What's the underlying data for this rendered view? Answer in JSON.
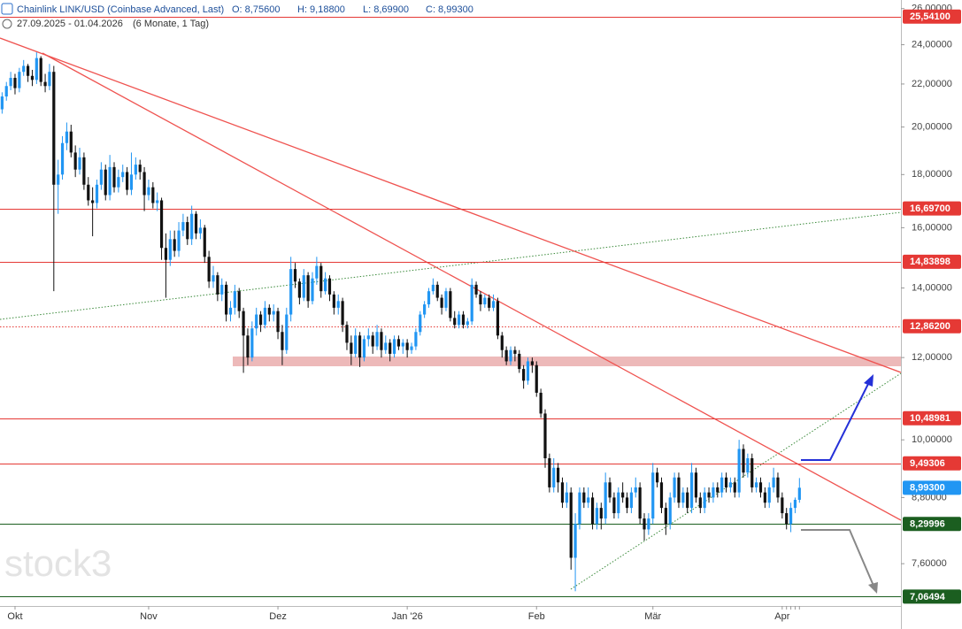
{
  "header": {
    "title": "Chainlink LINK/USD (Coinbase Advanced, Last)",
    "open": "O: 8,75600",
    "high": "H: 9,18800",
    "low": "L: 8,69900",
    "close": "C: 8,99300",
    "range": "27.09.2025 - 01.04.2026",
    "period": "(6 Monate, 1 Tag)"
  },
  "watermark": "stock3",
  "chart_data": {
    "type": "candlestick",
    "log_scale": true,
    "up_color": "#2196f3",
    "down_color": "#111111",
    "ylim": [
      6.92,
      26.5
    ],
    "yticks": [
      {
        "value": 26,
        "label": "26,00000"
      },
      {
        "value": 24,
        "label": "24,00000"
      },
      {
        "value": 22,
        "label": "22,00000"
      },
      {
        "value": 20,
        "label": "20,00000"
      },
      {
        "value": 18,
        "label": "18,00000"
      },
      {
        "value": 16,
        "label": "16,00000"
      },
      {
        "value": 14,
        "label": "14,00000"
      },
      {
        "value": 12,
        "label": "12,00000"
      },
      {
        "value": 10,
        "label": "10,00000"
      },
      {
        "value": 8.8,
        "label": "8,80000"
      },
      {
        "value": 7.6,
        "label": "7,60000"
      }
    ],
    "levels": [
      {
        "value": 25.541,
        "label": "25,54100",
        "color": "#e53935",
        "style": "solid"
      },
      {
        "value": 16.697,
        "label": "16,69700",
        "color": "#e53935",
        "style": "solid"
      },
      {
        "value": 14.83898,
        "label": "14,83898",
        "color": "#e53935",
        "style": "solid"
      },
      {
        "value": 12.862,
        "label": "12,86200",
        "color": "#e53935",
        "style": "dotted"
      },
      {
        "value": 10.48981,
        "label": "10,48981",
        "color": "#e53935",
        "style": "solid"
      },
      {
        "value": 9.49306,
        "label": "9,49306",
        "color": "#e53935",
        "style": "solid"
      },
      {
        "value": 8.993,
        "label": "8,99300",
        "color": "#2196f3",
        "style": "none"
      },
      {
        "value": 8.29996,
        "label": "8,29996",
        "color": "#1b5e20",
        "style": "solid"
      },
      {
        "value": 7.06494,
        "label": "7,06494",
        "color": "#1b5e20",
        "style": "solid"
      }
    ],
    "categories": [
      null,
      null,
      null,
      null,
      "Okt",
      null,
      null,
      null,
      null,
      null,
      null,
      null,
      null,
      null,
      null,
      null,
      null,
      null,
      null,
      null,
      null,
      null,
      null,
      null,
      null,
      null,
      null,
      null,
      null,
      null,
      null,
      null,
      null,
      null,
      null,
      "Nov",
      null,
      null,
      null,
      null,
      null,
      null,
      null,
      null,
      null,
      null,
      null,
      null,
      null,
      null,
      null,
      null,
      null,
      null,
      null,
      null,
      null,
      null,
      null,
      null,
      null,
      null,
      null,
      null,
      null,
      "Dez",
      null,
      null,
      null,
      null,
      null,
      null,
      null,
      null,
      null,
      null,
      null,
      null,
      null,
      null,
      null,
      null,
      null,
      null,
      null,
      null,
      null,
      null,
      null,
      null,
      null,
      null,
      null,
      null,
      null,
      "Jan '26",
      null,
      null,
      null,
      null,
      null,
      null,
      null,
      null,
      null,
      null,
      null,
      null,
      null,
      null,
      null,
      null,
      null,
      null,
      null,
      null,
      null,
      null,
      null,
      null,
      null,
      null,
      null,
      null,
      null,
      "Feb",
      null,
      null,
      null,
      null,
      null,
      null,
      null,
      null,
      null,
      null,
      null,
      null,
      null,
      null,
      null,
      null,
      null,
      null,
      null,
      null,
      null,
      null,
      null,
      null,
      null,
      null,
      "Mär",
      null,
      null,
      null,
      null,
      null,
      null,
      null,
      null,
      null,
      null,
      null,
      null,
      null,
      null,
      null,
      null,
      null,
      null,
      null,
      null,
      null,
      null,
      null,
      null,
      null,
      null,
      null,
      null,
      null,
      "Apr"
    ],
    "ohlc": [
      [
        20.6,
        21.0,
        20.4,
        20.8
      ],
      [
        20.8,
        21.6,
        20.6,
        21.4
      ],
      [
        21.4,
        22.1,
        21.2,
        21.9
      ],
      [
        21.9,
        22.6,
        21.7,
        22.3
      ],
      [
        22.3,
        22.5,
        21.5,
        21.8
      ],
      [
        21.8,
        22.8,
        21.6,
        22.6
      ],
      [
        22.6,
        23.2,
        22.4,
        22.9
      ],
      [
        22.9,
        23.0,
        22.1,
        22.4
      ],
      [
        22.4,
        22.7,
        21.9,
        22.2
      ],
      [
        22.2,
        23.6,
        22.0,
        23.3
      ],
      [
        23.3,
        23.4,
        21.9,
        22.1
      ],
      [
        22.1,
        22.5,
        21.6,
        21.9
      ],
      [
        21.9,
        23.0,
        21.7,
        22.6
      ],
      [
        22.6,
        22.9,
        13.9,
        17.6
      ],
      [
        17.6,
        18.6,
        16.5,
        18.0
      ],
      [
        18.0,
        19.6,
        17.8,
        19.3
      ],
      [
        19.3,
        20.2,
        19.0,
        19.8
      ],
      [
        19.8,
        20.1,
        18.7,
        18.9
      ],
      [
        18.9,
        19.2,
        17.9,
        18.2
      ],
      [
        18.2,
        19.1,
        18.0,
        18.7
      ],
      [
        18.7,
        18.9,
        17.4,
        17.6
      ],
      [
        17.6,
        17.9,
        16.8,
        17.0
      ],
      [
        17.0,
        17.5,
        15.7,
        16.9
      ],
      [
        16.9,
        17.8,
        16.7,
        17.6
      ],
      [
        17.6,
        18.5,
        17.4,
        18.2
      ],
      [
        18.2,
        18.4,
        17.0,
        17.2
      ],
      [
        17.2,
        18.8,
        17.0,
        18.3
      ],
      [
        18.3,
        18.5,
        17.3,
        17.5
      ],
      [
        17.5,
        18.2,
        17.3,
        17.9
      ],
      [
        17.9,
        18.4,
        17.7,
        18.1
      ],
      [
        18.1,
        18.3,
        17.2,
        17.4
      ],
      [
        17.4,
        18.9,
        17.2,
        18.0
      ],
      [
        18.0,
        18.7,
        17.8,
        18.4
      ],
      [
        18.4,
        18.6,
        17.8,
        18.1
      ],
      [
        18.1,
        18.3,
        16.6,
        17.2
      ],
      [
        17.2,
        17.8,
        17.0,
        17.5
      ],
      [
        17.5,
        17.7,
        16.7,
        16.9
      ],
      [
        16.9,
        17.3,
        16.6,
        17.0
      ],
      [
        17.0,
        17.1,
        14.9,
        15.3
      ],
      [
        15.3,
        15.8,
        13.7,
        14.9
      ],
      [
        14.9,
        15.9,
        14.7,
        15.6
      ],
      [
        15.6,
        15.9,
        15.0,
        15.2
      ],
      [
        15.2,
        16.2,
        15.0,
        15.9
      ],
      [
        15.9,
        16.5,
        15.7,
        16.2
      ],
      [
        16.2,
        16.4,
        15.4,
        15.6
      ],
      [
        15.6,
        16.8,
        15.4,
        16.5
      ],
      [
        16.5,
        16.6,
        15.6,
        15.8
      ],
      [
        15.8,
        16.3,
        15.6,
        16.0
      ],
      [
        16.0,
        16.1,
        14.8,
        15.0
      ],
      [
        15.0,
        15.2,
        14.0,
        14.2
      ],
      [
        14.2,
        14.7,
        14.0,
        14.4
      ],
      [
        14.4,
        14.5,
        13.6,
        13.8
      ],
      [
        13.8,
        14.3,
        13.6,
        14.1
      ],
      [
        14.1,
        14.2,
        13.0,
        13.2
      ],
      [
        13.2,
        13.6,
        13.0,
        13.4
      ],
      [
        13.4,
        14.1,
        13.2,
        13.9
      ],
      [
        13.9,
        14.0,
        13.1,
        13.3
      ],
      [
        13.3,
        13.4,
        11.6,
        12.6
      ],
      [
        12.6,
        12.8,
        11.8,
        12.0
      ],
      [
        12.0,
        13.0,
        11.9,
        12.8
      ],
      [
        12.8,
        13.4,
        12.6,
        13.2
      ],
      [
        13.2,
        13.3,
        12.7,
        12.9
      ],
      [
        12.9,
        13.6,
        12.8,
        13.4
      ],
      [
        13.4,
        13.5,
        13.0,
        13.2
      ],
      [
        13.2,
        13.5,
        13.0,
        13.3
      ],
      [
        13.3,
        13.4,
        12.5,
        12.7
      ],
      [
        12.7,
        12.9,
        11.8,
        12.2
      ],
      [
        12.2,
        13.4,
        12.1,
        13.2
      ],
      [
        13.2,
        15.0,
        13.0,
        14.6
      ],
      [
        14.6,
        14.8,
        14.0,
        14.2
      ],
      [
        14.2,
        14.3,
        13.5,
        13.7
      ],
      [
        13.7,
        14.6,
        13.6,
        14.4
      ],
      [
        14.4,
        14.5,
        13.4,
        13.6
      ],
      [
        13.6,
        14.5,
        13.5,
        14.3
      ],
      [
        14.3,
        15.0,
        14.1,
        14.7
      ],
      [
        14.7,
        14.8,
        13.7,
        13.9
      ],
      [
        13.9,
        14.5,
        13.8,
        14.3
      ],
      [
        14.3,
        14.4,
        13.6,
        13.8
      ],
      [
        13.8,
        13.9,
        13.2,
        13.4
      ],
      [
        13.4,
        13.8,
        13.2,
        13.6
      ],
      [
        13.6,
        13.7,
        12.7,
        12.9
      ],
      [
        12.9,
        13.0,
        12.2,
        12.4
      ],
      [
        12.4,
        12.6,
        11.8,
        12.1
      ],
      [
        12.1,
        12.8,
        12.0,
        12.6
      ],
      [
        12.6,
        12.7,
        11.75,
        12.0
      ],
      [
        12.0,
        12.6,
        11.9,
        12.5
      ],
      [
        12.5,
        12.8,
        12.3,
        12.6
      ],
      [
        12.6,
        12.7,
        12.1,
        12.3
      ],
      [
        12.3,
        12.9,
        12.2,
        12.7
      ],
      [
        12.7,
        12.8,
        12.0,
        12.2
      ],
      [
        12.2,
        12.6,
        12.1,
        12.4
      ],
      [
        12.4,
        12.5,
        11.9,
        12.1
      ],
      [
        12.1,
        12.6,
        12.0,
        12.5
      ],
      [
        12.5,
        12.6,
        12.2,
        12.3
      ],
      [
        12.3,
        12.5,
        12.1,
        12.4
      ],
      [
        12.4,
        12.5,
        12.0,
        12.2
      ],
      [
        12.2,
        12.4,
        12.1,
        12.3
      ],
      [
        12.3,
        12.8,
        12.2,
        12.7
      ],
      [
        12.7,
        13.3,
        12.6,
        13.2
      ],
      [
        13.2,
        13.6,
        13.1,
        13.5
      ],
      [
        13.5,
        14.0,
        13.4,
        13.9
      ],
      [
        13.9,
        14.3,
        13.8,
        14.1
      ],
      [
        14.1,
        14.2,
        13.6,
        13.7
      ],
      [
        13.7,
        13.8,
        13.2,
        13.4
      ],
      [
        13.4,
        14.0,
        13.3,
        13.9
      ],
      [
        13.9,
        14.0,
        13.0,
        13.1
      ],
      [
        13.1,
        13.3,
        12.8,
        12.9
      ],
      [
        12.9,
        13.3,
        12.8,
        13.2
      ],
      [
        13.2,
        13.3,
        12.8,
        12.9
      ],
      [
        12.9,
        13.1,
        12.8,
        13.0
      ],
      [
        13.0,
        14.3,
        12.9,
        14.1
      ],
      [
        14.1,
        14.2,
        13.7,
        13.8
      ],
      [
        13.8,
        13.9,
        13.3,
        13.5
      ],
      [
        13.5,
        13.8,
        13.4,
        13.7
      ],
      [
        13.7,
        13.8,
        13.3,
        13.4
      ],
      [
        13.4,
        13.8,
        13.3,
        13.6
      ],
      [
        13.6,
        13.7,
        12.5,
        12.6
      ],
      [
        12.6,
        12.7,
        12.0,
        12.2
      ],
      [
        12.2,
        12.3,
        11.8,
        11.9
      ],
      [
        11.9,
        12.3,
        11.8,
        12.2
      ],
      [
        12.2,
        12.3,
        11.9,
        12.1
      ],
      [
        12.1,
        12.2,
        11.6,
        11.7
      ],
      [
        11.7,
        11.8,
        11.2,
        11.4
      ],
      [
        11.4,
        12.0,
        11.3,
        11.9
      ],
      [
        11.9,
        12.0,
        11.6,
        11.8
      ],
      [
        11.8,
        11.9,
        11.0,
        11.1
      ],
      [
        11.1,
        11.2,
        10.5,
        10.6
      ],
      [
        10.6,
        10.7,
        9.4,
        9.6
      ],
      [
        9.6,
        9.7,
        8.9,
        9.0
      ],
      [
        9.0,
        9.6,
        8.9,
        9.4
      ],
      [
        9.4,
        9.5,
        8.9,
        9.1
      ],
      [
        9.1,
        9.2,
        8.6,
        8.7
      ],
      [
        8.7,
        9.1,
        8.6,
        8.9
      ],
      [
        8.9,
        9.0,
        7.5,
        7.7
      ],
      [
        7.7,
        8.5,
        7.15,
        8.3
      ],
      [
        8.3,
        9.0,
        8.2,
        8.9
      ],
      [
        8.9,
        9.0,
        8.6,
        8.7
      ],
      [
        8.7,
        9.0,
        8.6,
        8.8
      ],
      [
        8.8,
        8.9,
        8.2,
        8.3
      ],
      [
        8.3,
        8.7,
        8.2,
        8.6
      ],
      [
        8.6,
        8.7,
        8.2,
        8.4
      ],
      [
        8.4,
        9.3,
        8.3,
        9.1
      ],
      [
        9.1,
        9.2,
        8.7,
        8.8
      ],
      [
        8.8,
        8.9,
        8.4,
        8.5
      ],
      [
        8.5,
        9.0,
        8.4,
        8.9
      ],
      [
        8.9,
        9.1,
        8.7,
        8.8
      ],
      [
        8.8,
        8.9,
        8.5,
        8.6
      ],
      [
        8.6,
        9.0,
        8.5,
        8.9
      ],
      [
        8.9,
        9.2,
        8.8,
        9.0
      ],
      [
        9.0,
        9.1,
        8.3,
        8.4
      ],
      [
        8.4,
        8.5,
        8.0,
        8.2
      ],
      [
        8.2,
        8.5,
        8.1,
        8.4
      ],
      [
        8.4,
        9.5,
        8.3,
        9.3
      ],
      [
        9.3,
        9.4,
        9.0,
        9.1
      ],
      [
        9.1,
        9.2,
        8.5,
        8.6
      ],
      [
        8.6,
        8.7,
        8.1,
        8.3
      ],
      [
        8.3,
        8.9,
        8.2,
        8.8
      ],
      [
        8.8,
        9.3,
        8.7,
        9.2
      ],
      [
        9.2,
        9.3,
        8.6,
        8.7
      ],
      [
        8.7,
        9.0,
        8.6,
        8.9
      ],
      [
        8.9,
        9.0,
        8.5,
        8.6
      ],
      [
        8.6,
        9.5,
        8.5,
        9.3
      ],
      [
        9.3,
        9.4,
        8.7,
        8.8
      ],
      [
        8.8,
        8.9,
        8.5,
        8.6
      ],
      [
        8.6,
        9.0,
        8.5,
        8.9
      ],
      [
        8.9,
        9.0,
        8.7,
        8.8
      ],
      [
        8.8,
        9.1,
        8.7,
        9.0
      ],
      [
        9.0,
        9.1,
        8.8,
        8.9
      ],
      [
        8.9,
        9.3,
        8.8,
        9.2
      ],
      [
        9.2,
        9.3,
        8.9,
        9.0
      ],
      [
        9.0,
        9.2,
        8.9,
        9.1
      ],
      [
        9.1,
        9.2,
        8.8,
        8.9
      ],
      [
        8.9,
        10.0,
        8.8,
        9.8
      ],
      [
        9.8,
        9.9,
        9.2,
        9.3
      ],
      [
        9.3,
        9.7,
        9.2,
        9.6
      ],
      [
        9.6,
        9.7,
        8.9,
        9.0
      ],
      [
        9.0,
        9.2,
        8.9,
        9.1
      ],
      [
        9.1,
        9.2,
        8.8,
        8.9
      ],
      [
        8.9,
        9.0,
        8.6,
        8.7
      ],
      [
        8.7,
        9.1,
        8.6,
        9.0
      ],
      [
        9.0,
        9.4,
        8.9,
        9.2
      ],
      [
        9.2,
        9.3,
        8.7,
        8.8
      ],
      [
        8.8,
        8.9,
        8.4,
        8.5
      ],
      [
        8.5,
        8.6,
        8.2,
        8.3
      ],
      [
        8.3,
        8.7,
        8.15,
        8.6
      ],
      [
        8.6,
        8.8,
        8.5,
        8.756
      ],
      [
        8.756,
        9.188,
        8.699,
        8.993
      ]
    ]
  }
}
